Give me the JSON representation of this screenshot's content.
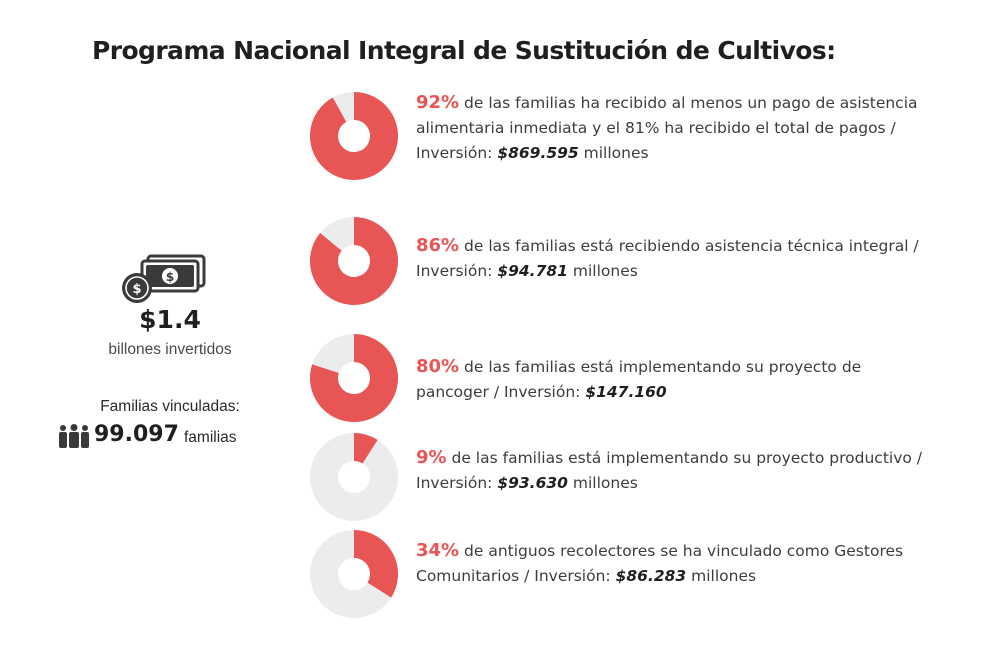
{
  "title": "Programa Nacional Integral de Sustitución de Cultivos:",
  "colors": {
    "accent": "#e85555",
    "track": "#ececec",
    "icon": "#3a3a3a"
  },
  "summary": {
    "investment_value": "$1.4",
    "investment_caption": "billones invertidos",
    "families_label": "Familias vinculadas:",
    "families_value": "99.097",
    "families_unit": "familias",
    "icons": [
      "money-icon",
      "people-icon"
    ]
  },
  "chart_data": {
    "type": "pie",
    "title": "Programa Nacional Integral de Sustitución de Cultivos:",
    "series": [
      {
        "pct_label": "92%",
        "value": 92,
        "text_a": "de las familias ha recibido al menos un pago de asistencia alimentaria inmediata y el 81% ha recibido el total de pagos / Inversión:",
        "investment": "$869.595",
        "text_b": "millones"
      },
      {
        "pct_label": "86%",
        "value": 86,
        "text_a": "de las familias está recibiendo asistencia técnica integral / Inversión:",
        "investment": "$94.781",
        "text_b": "millones"
      },
      {
        "pct_label": "80%",
        "value": 80,
        "text_a": "de las familias está implementando su proyecto de pancoger / Inversión:",
        "investment": "$147.160",
        "text_b": ""
      },
      {
        "pct_label": "9%",
        "value": 9,
        "text_a": "de las familias está implementando su proyecto productivo / Inversión:",
        "investment": "$93.630",
        "text_b": "millones"
      },
      {
        "pct_label": "34%",
        "value": 34,
        "text_a": "de antiguos recolectores se ha vinculado como Gestores Comunitarios / Inversión:",
        "investment": "$86.283",
        "text_b": "millones"
      }
    ]
  }
}
